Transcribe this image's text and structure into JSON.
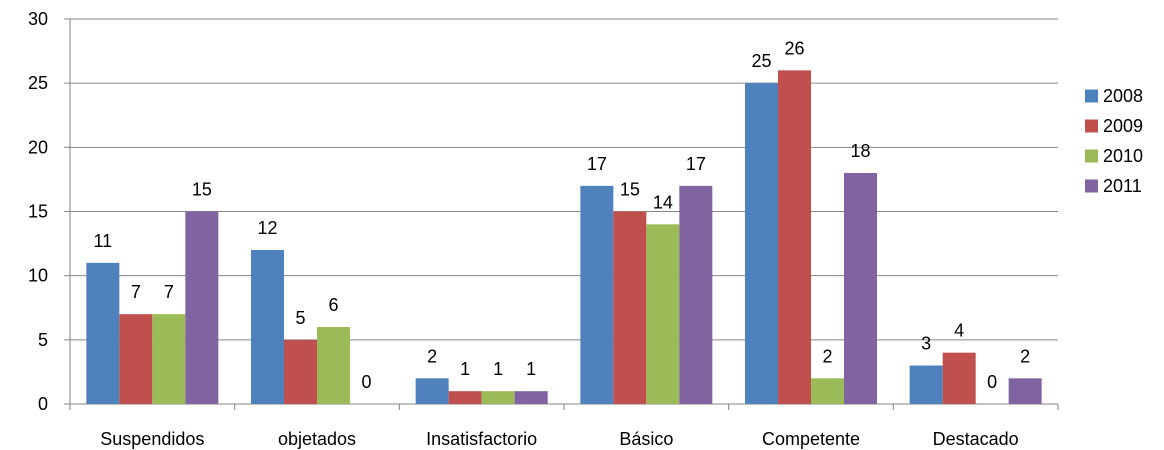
{
  "chart_data": {
    "type": "bar",
    "categories": [
      "Suspendidos",
      "objetados",
      "Insatisfactorio",
      "Básico",
      "Competente",
      "Destacado"
    ],
    "series": [
      {
        "name": "2008",
        "color": "#4F81BD",
        "values": [
          11,
          12,
          2,
          17,
          25,
          3
        ]
      },
      {
        "name": "2009",
        "color": "#C0504D",
        "values": [
          7,
          5,
          1,
          15,
          26,
          4
        ]
      },
      {
        "name": "2010",
        "color": "#9BBB59",
        "values": [
          7,
          6,
          1,
          14,
          2,
          0
        ]
      },
      {
        "name": "2011",
        "color": "#8064A2",
        "values": [
          15,
          0,
          1,
          17,
          18,
          2
        ]
      }
    ],
    "ylim": [
      0,
      30
    ],
    "yticks": [
      "0",
      "5",
      "10",
      "15",
      "20",
      "25",
      "30"
    ],
    "grid": true,
    "legend": "right",
    "title": "",
    "xlabel": "",
    "ylabel": ""
  }
}
